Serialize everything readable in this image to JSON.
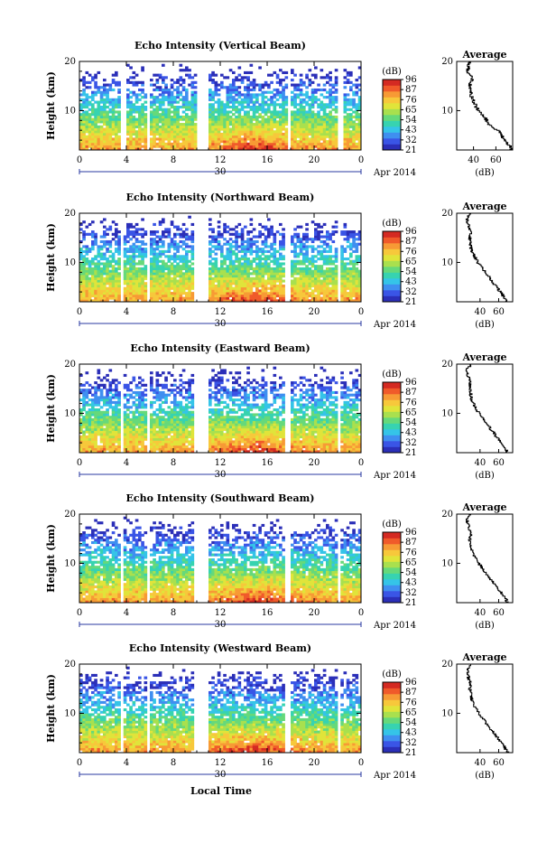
{
  "figure": {
    "x_axis_label": "Local Time",
    "height_label": "Height (km)",
    "colorbar_unit": "(dB)",
    "average_title": "Average",
    "average_unit": "(dB)",
    "date_day": "30",
    "date_month": "Apr 2014",
    "colorscale": [
      "#2b2fb8",
      "#3a55e6",
      "#3f8ff0",
      "#35c4e8",
      "#37d3b0",
      "#66d97a",
      "#a9e04e",
      "#e0e43a",
      "#f7c83b",
      "#f79a35",
      "#f05a2a",
      "#d42a22"
    ]
  },
  "chart_data": [
    {
      "type": "heatmap",
      "title": "Echo Intensity (Vertical Beam)",
      "ylabel": "Height (km)",
      "xlabel": "Local Time",
      "x_ticks": [
        "0",
        "4",
        "8",
        "12",
        "16",
        "20",
        "0"
      ],
      "y_ticks": [
        "10",
        "20"
      ],
      "xlim": [
        0,
        24
      ],
      "ylim": [
        2,
        20
      ],
      "colorbar_ticks": [
        "96",
        "87",
        "76",
        "65",
        "54",
        "43",
        "32",
        "21"
      ],
      "colorbar_range": [
        21,
        96
      ],
      "gaps_hours": [
        [
          3.6,
          3.9
        ],
        [
          5.8,
          6.1
        ],
        [
          10.0,
          11.1
        ],
        [
          17.7,
          18.0
        ],
        [
          22.1,
          22.4
        ]
      ],
      "average_profile": {
        "xlabel": "(dB)",
        "x_ticks": [
          "40",
          "60"
        ],
        "y_ticks": [
          "10",
          "20"
        ],
        "xlim": [
          25,
          75
        ],
        "height_km": [
          2,
          3,
          4,
          5,
          6,
          7,
          8,
          9,
          10,
          11,
          12,
          13,
          14,
          15,
          16,
          17,
          18,
          19,
          20
        ],
        "values_db": [
          74,
          72,
          68,
          65,
          62,
          55,
          52,
          49,
          45,
          42,
          40,
          38,
          38,
          36,
          38,
          40,
          34,
          36,
          36
        ]
      }
    },
    {
      "type": "heatmap",
      "title": "Echo Intensity (Northward Beam)",
      "ylabel": "Height (km)",
      "xlabel": "Local Time",
      "x_ticks": [
        "0",
        "4",
        "8",
        "12",
        "16",
        "20",
        "0"
      ],
      "y_ticks": [
        "10",
        "20"
      ],
      "xlim": [
        0,
        24
      ],
      "ylim": [
        2,
        20
      ],
      "colorbar_ticks": [
        "96",
        "87",
        "76",
        "65",
        "54",
        "43",
        "32",
        "21"
      ],
      "colorbar_range": [
        21,
        96
      ],
      "gaps_hours": [
        [
          3.5,
          3.8
        ],
        [
          5.8,
          6.1
        ],
        [
          9.7,
          11.0
        ],
        [
          17.6,
          18.0
        ],
        [
          22.0,
          22.3
        ]
      ],
      "average_profile": {
        "xlabel": "(dB)",
        "x_ticks": [
          "40",
          "60"
        ],
        "y_ticks": [
          "10",
          "20"
        ],
        "xlim": [
          15,
          75
        ],
        "height_km": [
          2,
          3,
          4,
          5,
          6,
          7,
          8,
          9,
          10,
          11,
          12,
          13,
          14,
          15,
          16,
          17,
          18,
          19,
          20
        ],
        "values_db": [
          68,
          66,
          62,
          58,
          54,
          50,
          46,
          42,
          38,
          35,
          32,
          30,
          30,
          29,
          30,
          28,
          27,
          26,
          30
        ]
      }
    },
    {
      "type": "heatmap",
      "title": "Echo Intensity (Eastward Beam)",
      "ylabel": "Height (km)",
      "xlabel": "Local Time",
      "x_ticks": [
        "0",
        "4",
        "8",
        "12",
        "16",
        "20",
        "0"
      ],
      "y_ticks": [
        "10",
        "20"
      ],
      "xlim": [
        0,
        24
      ],
      "ylim": [
        2,
        20
      ],
      "colorbar_ticks": [
        "96",
        "87",
        "76",
        "65",
        "54",
        "43",
        "32",
        "21"
      ],
      "colorbar_range": [
        21,
        96
      ],
      "gaps_hours": [
        [
          3.5,
          3.8
        ],
        [
          5.8,
          6.1
        ],
        [
          9.7,
          11.0
        ],
        [
          17.6,
          18.0
        ],
        [
          22.0,
          22.3
        ]
      ],
      "average_profile": {
        "xlabel": "(dB)",
        "x_ticks": [
          "40",
          "60"
        ],
        "y_ticks": [
          "10",
          "20"
        ],
        "xlim": [
          15,
          75
        ],
        "height_km": [
          2,
          3,
          4,
          5,
          6,
          7,
          8,
          9,
          10,
          11,
          12,
          13,
          14,
          15,
          16,
          17,
          18,
          19,
          20
        ],
        "values_db": [
          70,
          67,
          63,
          59,
          55,
          51,
          47,
          43,
          39,
          36,
          33,
          31,
          30,
          29,
          30,
          28,
          27,
          26,
          30
        ]
      }
    },
    {
      "type": "heatmap",
      "title": "Echo Intensity (Southward Beam)",
      "ylabel": "Height (km)",
      "xlabel": "Local Time",
      "x_ticks": [
        "0",
        "4",
        "8",
        "12",
        "16",
        "20",
        "0"
      ],
      "y_ticks": [
        "10",
        "20"
      ],
      "xlim": [
        0,
        24
      ],
      "ylim": [
        2,
        20
      ],
      "colorbar_ticks": [
        "96",
        "87",
        "76",
        "65",
        "54",
        "43",
        "32",
        "21"
      ],
      "colorbar_range": [
        21,
        96
      ],
      "gaps_hours": [
        [
          3.5,
          3.8
        ],
        [
          5.8,
          6.1
        ],
        [
          9.7,
          11.0
        ],
        [
          17.6,
          18.0
        ],
        [
          22.0,
          22.3
        ]
      ],
      "average_profile": {
        "xlabel": "(dB)",
        "x_ticks": [
          "40",
          "60"
        ],
        "y_ticks": [
          "10",
          "20"
        ],
        "xlim": [
          15,
          75
        ],
        "height_km": [
          2,
          3,
          4,
          5,
          6,
          7,
          8,
          9,
          10,
          11,
          12,
          13,
          14,
          15,
          16,
          17,
          18,
          19,
          20
        ],
        "values_db": [
          70,
          67,
          63,
          59,
          55,
          51,
          47,
          43,
          39,
          36,
          33,
          31,
          30,
          29,
          30,
          28,
          27,
          26,
          30
        ]
      }
    },
    {
      "type": "heatmap",
      "title": "Echo Intensity (Westward Beam)",
      "ylabel": "Height (km)",
      "xlabel": "Local Time",
      "x_ticks": [
        "0",
        "4",
        "8",
        "12",
        "16",
        "20",
        "0"
      ],
      "y_ticks": [
        "10",
        "20"
      ],
      "xlim": [
        0,
        24
      ],
      "ylim": [
        2,
        20
      ],
      "colorbar_ticks": [
        "96",
        "87",
        "76",
        "65",
        "54",
        "43",
        "32",
        "21"
      ],
      "colorbar_range": [
        21,
        96
      ],
      "gaps_hours": [
        [
          3.5,
          3.8
        ],
        [
          5.8,
          6.1
        ],
        [
          9.7,
          11.0
        ],
        [
          17.6,
          18.0
        ],
        [
          22.0,
          22.3
        ]
      ],
      "average_profile": {
        "xlabel": "(dB)",
        "x_ticks": [
          "40",
          "60"
        ],
        "y_ticks": [
          "10",
          "20"
        ],
        "xlim": [
          15,
          75
        ],
        "height_km": [
          2,
          3,
          4,
          5,
          6,
          7,
          8,
          9,
          10,
          11,
          12,
          13,
          14,
          15,
          16,
          17,
          18,
          19,
          20
        ],
        "values_db": [
          70,
          67,
          63,
          59,
          55,
          51,
          47,
          43,
          39,
          36,
          33,
          31,
          30,
          29,
          30,
          28,
          27,
          26,
          30
        ]
      }
    }
  ]
}
